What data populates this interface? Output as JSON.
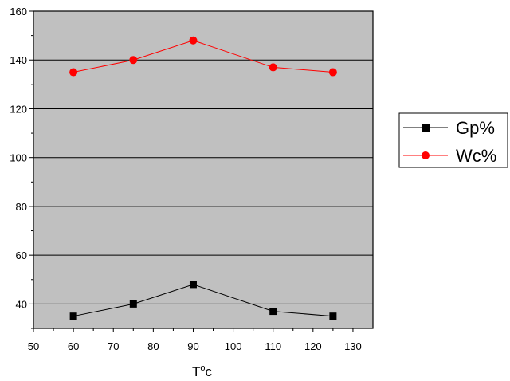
{
  "colors": {
    "plot_background": "#c0c0c0",
    "gridline": "#000000",
    "axis": "#000000",
    "page_background": "#ffffff"
  },
  "chart_data": {
    "type": "line",
    "title": "",
    "xlabel_main": "T",
    "xlabel_sup": "o",
    "xlabel_tail": "c",
    "ylabel": "",
    "xlim": [
      50,
      135
    ],
    "ylim": [
      30,
      160
    ],
    "xticks": [
      50,
      60,
      70,
      80,
      90,
      100,
      110,
      120,
      130
    ],
    "yticks": [
      40,
      60,
      80,
      100,
      120,
      140,
      160
    ],
    "grid": "horizontal",
    "legend_position": "right",
    "x": [
      60,
      75,
      90,
      110,
      125
    ],
    "series": [
      {
        "name": "Gp%",
        "values": [
          35,
          40,
          48,
          37,
          35
        ],
        "color": "#000000",
        "marker": "square"
      },
      {
        "name": "Wc%",
        "values": [
          135,
          140,
          148,
          137,
          135
        ],
        "color": "#ff0000",
        "marker": "circle"
      }
    ]
  }
}
